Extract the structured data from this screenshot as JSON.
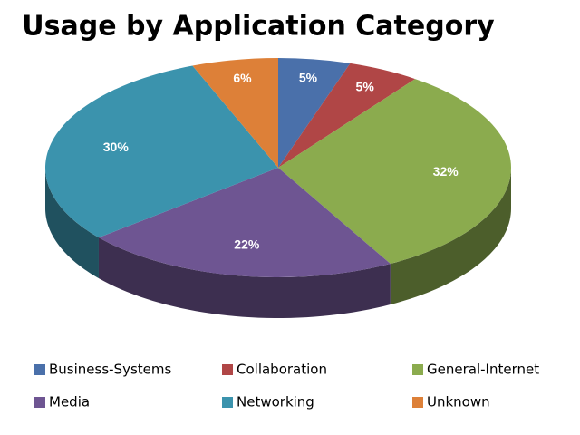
{
  "chart_data": {
    "type": "pie3d",
    "title": "Usage by Application Category",
    "categories": [
      "Business-Systems",
      "Collaboration",
      "General-Internet",
      "Media",
      "Networking",
      "Unknown"
    ],
    "values": [
      5,
      5,
      32,
      22,
      30,
      6
    ],
    "value_labels": [
      "5%",
      "5%",
      "32%",
      "22%",
      "30%",
      "6%"
    ],
    "colors": [
      "#4a70aa",
      "#b04646",
      "#8bab4e",
      "#6e5592",
      "#3b93ad",
      "#dd8038"
    ],
    "legend": "bottom"
  }
}
